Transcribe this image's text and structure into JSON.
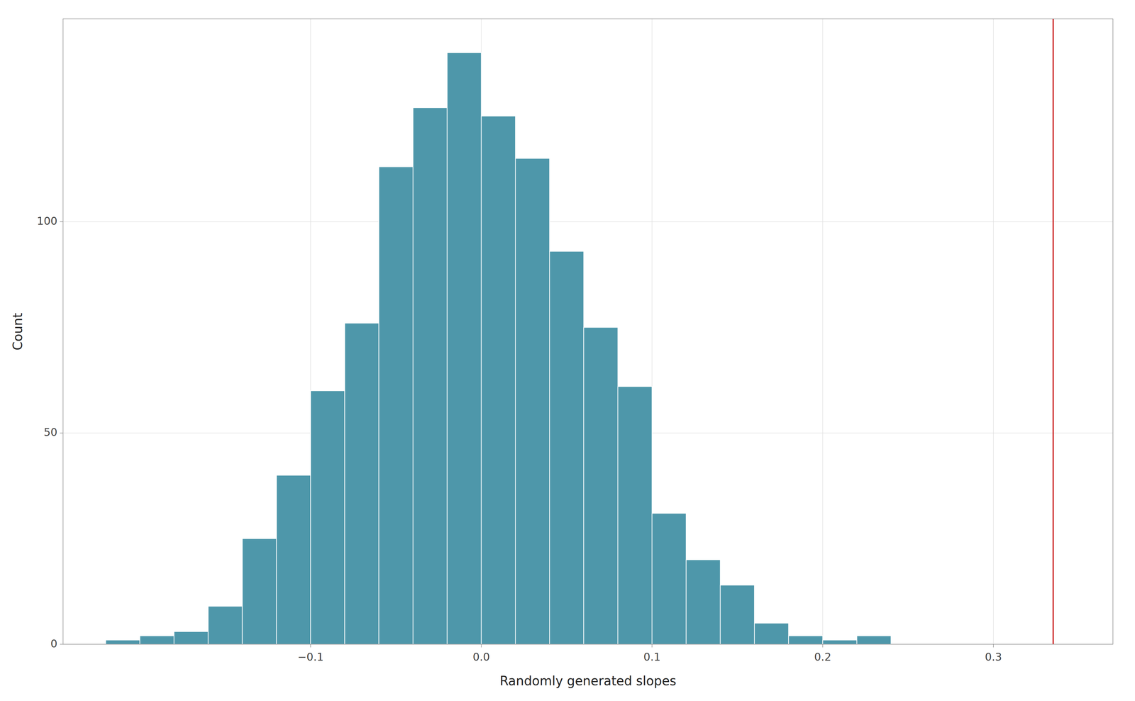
{
  "chart_data": {
    "type": "histogram",
    "bins": [
      -0.22,
      -0.2,
      -0.18,
      -0.16,
      -0.14,
      -0.12,
      -0.1,
      -0.08,
      -0.06,
      -0.04,
      -0.02,
      0.0,
      0.02,
      0.04,
      0.06,
      0.08,
      0.1,
      0.12,
      0.14,
      0.16,
      0.18,
      0.2,
      0.22,
      0.24
    ],
    "values": [
      1,
      2,
      3,
      9,
      25,
      40,
      60,
      76,
      113,
      127,
      140,
      125,
      115,
      93,
      75,
      61,
      31,
      20,
      14,
      5,
      2,
      1,
      2
    ],
    "color": "#4e97aa",
    "vline": {
      "x": 0.335,
      "color": "#cc2222"
    },
    "x_label": "Randomly generated slopes",
    "y_label": "Count",
    "xlim": [
      -0.245,
      0.37
    ],
    "ylim": [
      0,
      148
    ],
    "xticks": [
      {
        "value": -0.1,
        "label": "−0.1"
      },
      {
        "value": 0.0,
        "label": "0.0"
      },
      0.1,
      0.2,
      0.3
    ],
    "yticks": [
      0,
      50,
      100
    ],
    "grid": true
  }
}
